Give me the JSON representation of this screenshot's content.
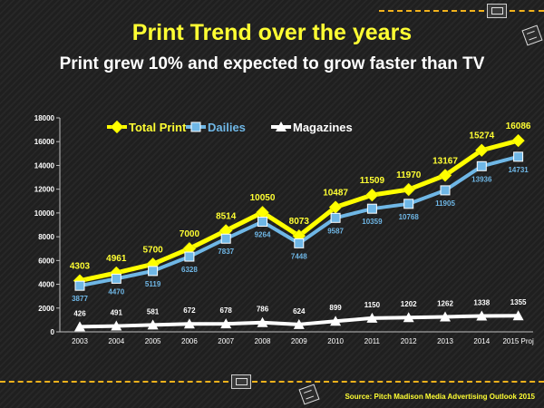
{
  "header": {
    "title": "Print Trend over the years",
    "subtitle": "Print grew 10%  and expected to grow faster than TV"
  },
  "footer": {
    "source": "Source: Pitch Madison Media Advertising Outlook 2015"
  },
  "colors": {
    "total_print": "#ffff00",
    "dailies": "#6fb7e6",
    "magazines": "#ffffff",
    "accent_dash": "#f2b21c"
  },
  "chart_data": {
    "type": "line",
    "title": "",
    "xlabel": "",
    "ylabel": "",
    "categories": [
      "2003",
      "2004",
      "2005",
      "2006",
      "2007",
      "2008",
      "2009",
      "2010",
      "2011",
      "2012",
      "2013",
      "2014",
      "2015 Proj"
    ],
    "ylim": [
      0,
      18000
    ],
    "yticks": [
      "0",
      "2000",
      "4000",
      "6000",
      "8000",
      "10000",
      "12000",
      "14000",
      "16000",
      "18000"
    ],
    "legend_position": "top-left",
    "grid": false,
    "series": [
      {
        "name": "Total Print",
        "values": [
          4303,
          4961,
          5700,
          7000,
          8514,
          10050,
          8073,
          10487,
          11509,
          11970,
          13167,
          15274,
          16086
        ],
        "labels": [
          "4303",
          "4961",
          "5700",
          "7000",
          "8514",
          "10050",
          "8073",
          "10487",
          "11509",
          "11970",
          "13167",
          "15274",
          "16086"
        ],
        "color": "#ffff00",
        "marker": "diamond-icon"
      },
      {
        "name": "Dailies",
        "values": [
          3877,
          4470,
          5119,
          6328,
          7837,
          9264,
          7448,
          9587,
          10359,
          10768,
          11905,
          13936,
          14731
        ],
        "labels": [
          "3877",
          "4470",
          "5119",
          "6328",
          "7837",
          "9264",
          "7448",
          "9587",
          "10359",
          "10768",
          "11905",
          "13936",
          "14731"
        ],
        "color": "#6fb7e6",
        "marker": "square-icon"
      },
      {
        "name": "Magazines",
        "values": [
          426,
          491,
          581,
          672,
          678,
          786,
          624,
          899,
          1150,
          1202,
          1262,
          1338,
          1355
        ],
        "labels": [
          "426",
          "491",
          "581",
          "672",
          "678",
          "786",
          "624",
          "899",
          "1150",
          "1202",
          "1262",
          "1338",
          "1355"
        ],
        "color": "#ffffff",
        "marker": "triangle-icon"
      }
    ]
  }
}
